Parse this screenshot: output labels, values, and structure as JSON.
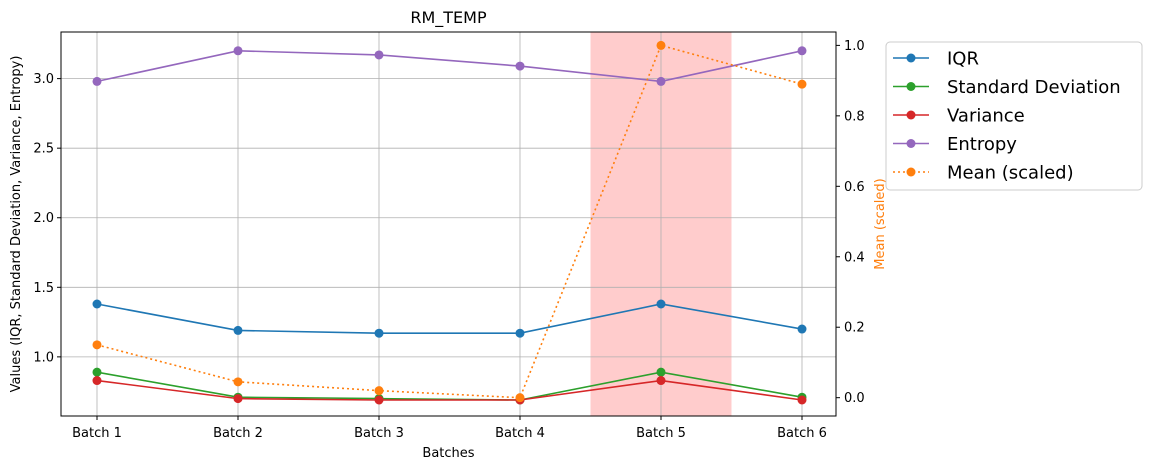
{
  "chart_data": {
    "type": "line",
    "title": "RM_TEMP",
    "xlabel": "Batches",
    "ylabel": "Values (IQR, Standard Deviation, Variance, Entropy)",
    "y2label": "Mean (scaled)",
    "categories": [
      "Batch 1",
      "Batch 2",
      "Batch 3",
      "Batch 4",
      "Batch 5",
      "Batch 6"
    ],
    "ylim": [
      0.575,
      3.335
    ],
    "y2lim": [
      -0.052,
      1.038
    ],
    "yticks": [
      "1.0",
      "1.5",
      "2.0",
      "2.5",
      "3.0"
    ],
    "y2ticks": [
      "0.0",
      "0.2",
      "0.4",
      "0.6",
      "0.8",
      "1.0"
    ],
    "grid": true,
    "legend_position": "outside-right",
    "highlight_category": "Batch 5",
    "highlight_color": "#ff9999",
    "series": [
      {
        "name": "IQR",
        "axis": "left",
        "style": "solid",
        "color": "#1f77b4",
        "values": [
          1.38,
          1.19,
          1.17,
          1.17,
          1.38,
          1.2
        ]
      },
      {
        "name": "Standard Deviation",
        "axis": "left",
        "style": "solid",
        "color": "#2ca02c",
        "values": [
          0.89,
          0.71,
          0.7,
          0.69,
          0.89,
          0.71
        ]
      },
      {
        "name": "Variance",
        "axis": "left",
        "style": "solid",
        "color": "#d62728",
        "values": [
          0.83,
          0.7,
          0.69,
          0.69,
          0.83,
          0.69
        ]
      },
      {
        "name": "Entropy",
        "axis": "left",
        "style": "solid",
        "color": "#9467bd",
        "values": [
          2.98,
          3.2,
          3.17,
          3.09,
          2.98,
          3.2
        ]
      },
      {
        "name": "Mean (scaled)",
        "axis": "right",
        "style": "dotted",
        "color": "#ff7f0e",
        "values": [
          0.15,
          0.045,
          0.02,
          0.0,
          1.0,
          0.89
        ]
      }
    ]
  }
}
